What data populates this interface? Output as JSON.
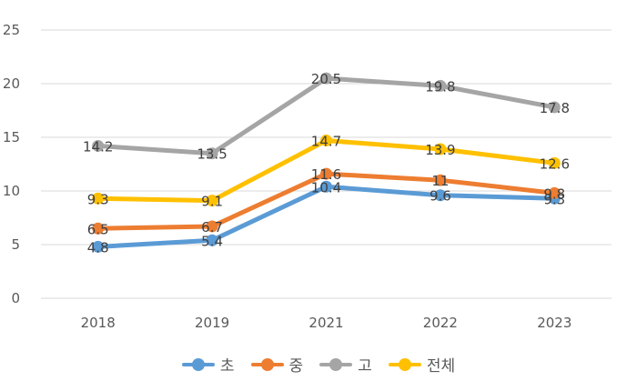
{
  "chart_data": {
    "type": "line",
    "categories": [
      "2018",
      "2019",
      "2021",
      "2022",
      "2023"
    ],
    "ylim": [
      0,
      25
    ],
    "yticks": [
      0,
      5,
      10,
      15,
      20,
      25
    ],
    "grid": true,
    "legend_position": "bottom",
    "series": [
      {
        "name": "초",
        "color": "#5B9BD5",
        "values": [
          4.8,
          5.4,
          10.4,
          9.6,
          9.3
        ],
        "labels": [
          "4.8",
          "5.4",
          "10.4",
          "9.6",
          "9.3"
        ]
      },
      {
        "name": "중",
        "color": "#ED7D31",
        "values": [
          6.5,
          6.7,
          11.6,
          11,
          9.8
        ],
        "labels": [
          "6.5",
          "6.7",
          "11.6",
          "11",
          "9.8"
        ]
      },
      {
        "name": "고",
        "color": "#A5A5A5",
        "values": [
          14.2,
          13.5,
          20.5,
          19.8,
          17.8
        ],
        "labels": [
          "14.2",
          "13.5",
          "20.5",
          "19.8",
          "17.8"
        ]
      },
      {
        "name": "전체",
        "color": "#FFC000",
        "values": [
          9.3,
          9.1,
          14.7,
          13.9,
          12.6
        ],
        "labels": [
          "9.3",
          "9.1",
          "14.7",
          "13.9",
          "12.6"
        ]
      }
    ]
  }
}
